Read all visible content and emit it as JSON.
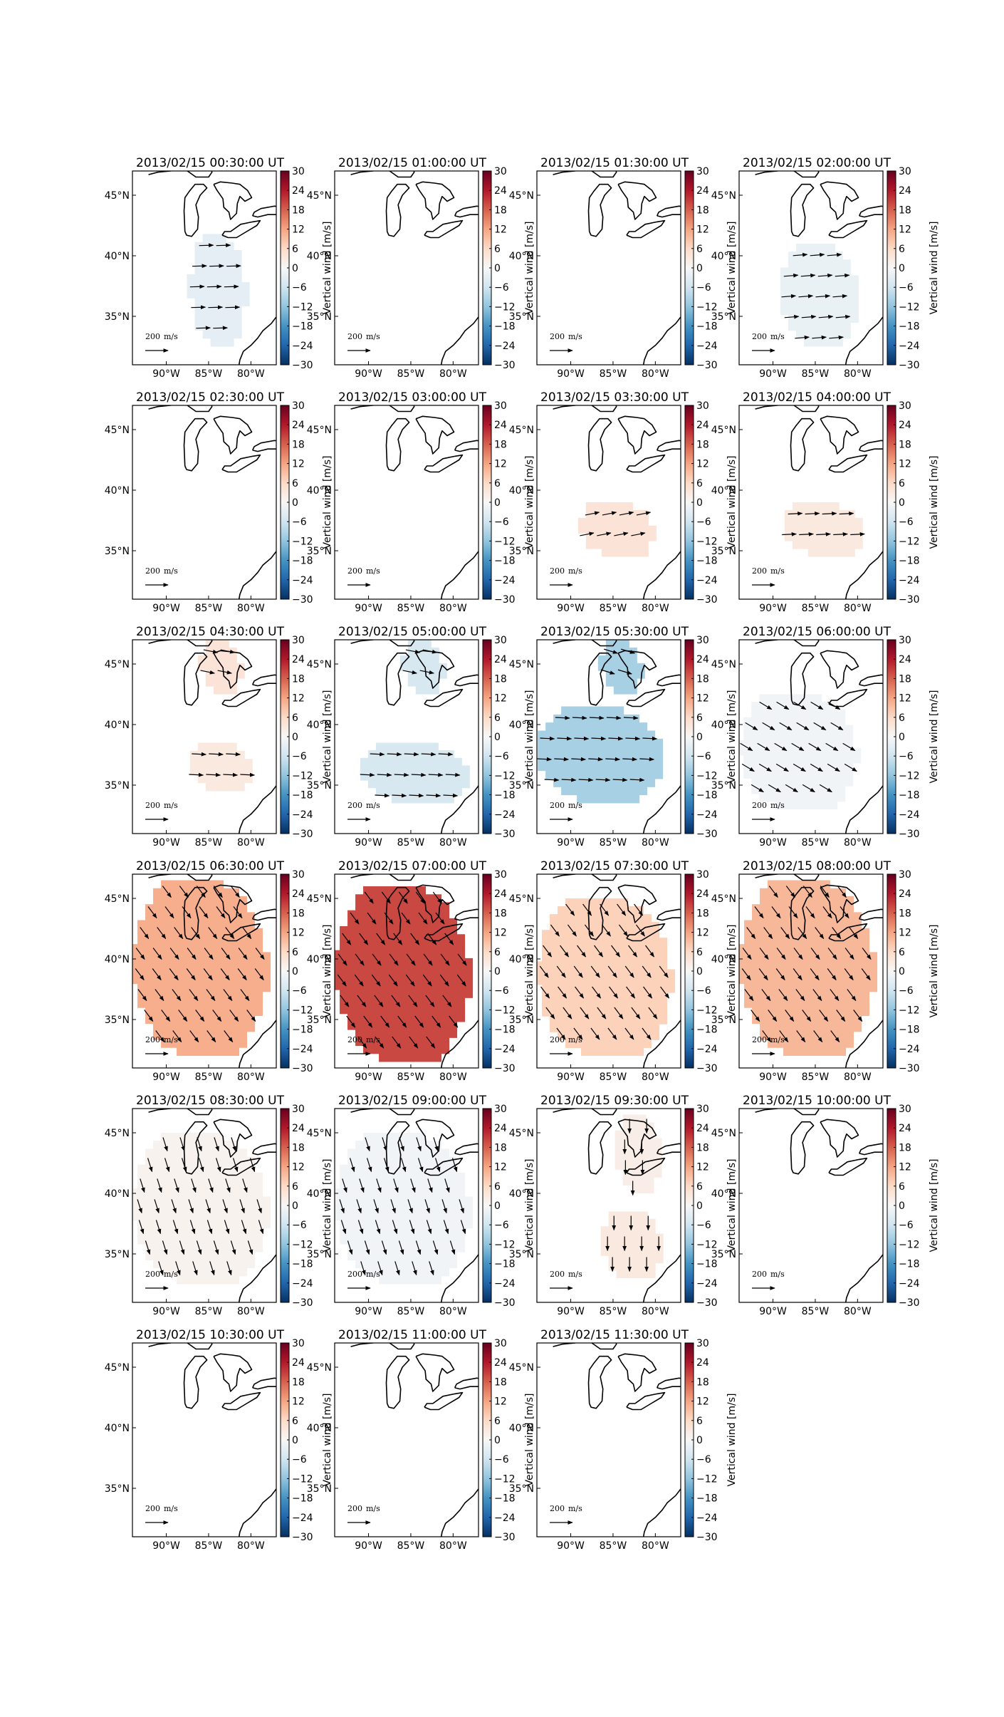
{
  "figure": {
    "colorbar_label": "Vertical wind [m/s]",
    "colorbar_ticks": [
      "30",
      "24",
      "18",
      "12",
      "6",
      "0",
      "−6",
      "−12",
      "−18",
      "−24",
      "−30"
    ],
    "x_tick_labels": [
      "90°W",
      "85°W",
      "80°W"
    ],
    "y_tick_labels": [
      "45°N",
      "40°N",
      "35°N"
    ],
    "reference_arrow_label": "200",
    "reference_arrow_unit": "m/s",
    "colormap": "RdBu_r",
    "colors": {
      "neg_max": "#053061",
      "neutral": "#f7f7f7",
      "pos_max": "#67001f"
    }
  },
  "chart_data": {
    "type": "vector_map",
    "region": {
      "lon_range": [
        -94,
        -77
      ],
      "lat_range": [
        31,
        47
      ]
    },
    "color_range": [
      -30,
      30
    ],
    "panels": [
      {
        "title": "2013/02/15 00:30:00 UT",
        "regions": [
          {
            "value": -3,
            "lon": [
              -87.2,
              -80.5
            ],
            "lat": [
              32.5,
              41.8
            ],
            "dir": [
              1,
              0.03
            ]
          }
        ]
      },
      {
        "title": "2013/02/15 01:00:00 UT",
        "regions": []
      },
      {
        "title": "2013/02/15 01:30:00 UT",
        "regions": []
      },
      {
        "title": "2013/02/15 02:00:00 UT",
        "regions": [
          {
            "value": -2,
            "lon": [
              -89,
              -80
            ],
            "lat": [
              32.5,
              41
            ],
            "dir": [
              1,
              0.08
            ]
          }
        ]
      },
      {
        "title": "2013/02/15 02:30:00 UT",
        "regions": []
      },
      {
        "title": "2013/02/15 03:00:00 UT",
        "regions": []
      },
      {
        "title": "2013/02/15 03:30:00 UT",
        "regions": [
          {
            "value": 4,
            "lon": [
              -89,
              -80
            ],
            "lat": [
              34.5,
              39
            ],
            "dir": [
              1,
              0.2
            ]
          }
        ]
      },
      {
        "title": "2013/02/15 04:00:00 UT",
        "regions": [
          {
            "value": 3,
            "lon": [
              -89,
              -79
            ],
            "lat": [
              34.5,
              39
            ],
            "dir": [
              1,
              0.05
            ]
          }
        ]
      },
      {
        "title": "2013/02/15 04:30:00 UT",
        "regions": [
          {
            "value": 4,
            "lon": [
              -86,
              -81
            ],
            "lat": [
              42.5,
              47
            ],
            "dir": [
              1,
              -0.2
            ]
          },
          {
            "value": 3,
            "lon": [
              -87.5,
              -79.5
            ],
            "lat": [
              34.5,
              38.5
            ],
            "dir": [
              1,
              -0.05
            ]
          }
        ]
      },
      {
        "title": "2013/02/15 05:00:00 UT",
        "regions": [
          {
            "value": -5,
            "lon": [
              -86,
              -81
            ],
            "lat": [
              42.5,
              47
            ],
            "dir": [
              1,
              -0.2
            ]
          },
          {
            "value": -5,
            "lon": [
              -91,
              -78
            ],
            "lat": [
              33.5,
              38.5
            ],
            "dir": [
              1,
              -0.05
            ]
          }
        ]
      },
      {
        "title": "2013/02/15 05:30:00 UT",
        "regions": [
          {
            "value": -10,
            "lon": [
              -86.5,
              -81.5
            ],
            "lat": [
              42.5,
              47
            ],
            "dir": [
              1,
              -0.3
            ]
          },
          {
            "value": -10,
            "lon": [
              -94,
              -79
            ],
            "lat": [
              33.5,
              41.5
            ],
            "dir": [
              1,
              -0.05
            ]
          }
        ]
      },
      {
        "title": "2013/02/15 06:00:00 UT",
        "regions": [
          {
            "value": -1,
            "lon": [
              -94,
              -80
            ],
            "lat": [
              33,
              42.5
            ],
            "dir": [
              1,
              -0.6
            ]
          }
        ]
      },
      {
        "title": "2013/02/15 06:30:00 UT",
        "regions": [
          {
            "value": 11,
            "lon": [
              -94,
              -78
            ],
            "lat": [
              32,
              46.5
            ],
            "dir": [
              0.6,
              -0.8
            ]
          }
        ]
      },
      {
        "title": "2013/02/15 07:00:00 UT",
        "regions": [
          {
            "value": 20,
            "lon": [
              -94,
              -78
            ],
            "lat": [
              31.5,
              46
            ],
            "dir": [
              0.6,
              -0.8
            ]
          }
        ]
      },
      {
        "title": "2013/02/15 07:30:00 UT",
        "regions": [
          {
            "value": 7,
            "lon": [
              -94,
              -78
            ],
            "lat": [
              32,
              45
            ],
            "dir": [
              0.6,
              -0.8
            ]
          }
        ]
      },
      {
        "title": "2013/02/15 08:00:00 UT",
        "regions": [
          {
            "value": 10,
            "lon": [
              -94,
              -78
            ],
            "lat": [
              32,
              46.5
            ],
            "dir": [
              0.6,
              -0.8
            ]
          }
        ]
      },
      {
        "title": "2013/02/15 08:30:00 UT",
        "regions": [
          {
            "value": 1,
            "lon": [
              -94,
              -78
            ],
            "lat": [
              32.5,
              45
            ],
            "dir": [
              0.3,
              -0.95
            ]
          }
        ]
      },
      {
        "title": "2013/02/15 09:00:00 UT",
        "regions": [
          {
            "value": -1,
            "lon": [
              -94,
              -78
            ],
            "lat": [
              32.5,
              45
            ],
            "dir": [
              0.3,
              -0.95
            ]
          }
        ]
      },
      {
        "title": "2013/02/15 09:30:00 UT",
        "regions": [
          {
            "value": 2,
            "lon": [
              -84.5,
              -79.5
            ],
            "lat": [
              40,
              46.5
            ],
            "dir": [
              0,
              -1
            ]
          },
          {
            "value": 3,
            "lon": [
              -86.5,
              -79
            ],
            "lat": [
              33,
              38.5
            ],
            "dir": [
              0,
              -1
            ]
          }
        ]
      },
      {
        "title": "2013/02/15 10:00:00 UT",
        "regions": []
      },
      {
        "title": "2013/02/15 10:30:00 UT",
        "regions": []
      },
      {
        "title": "2013/02/15 11:00:00 UT",
        "regions": []
      },
      {
        "title": "2013/02/15 11:30:00 UT",
        "regions": []
      }
    ]
  }
}
